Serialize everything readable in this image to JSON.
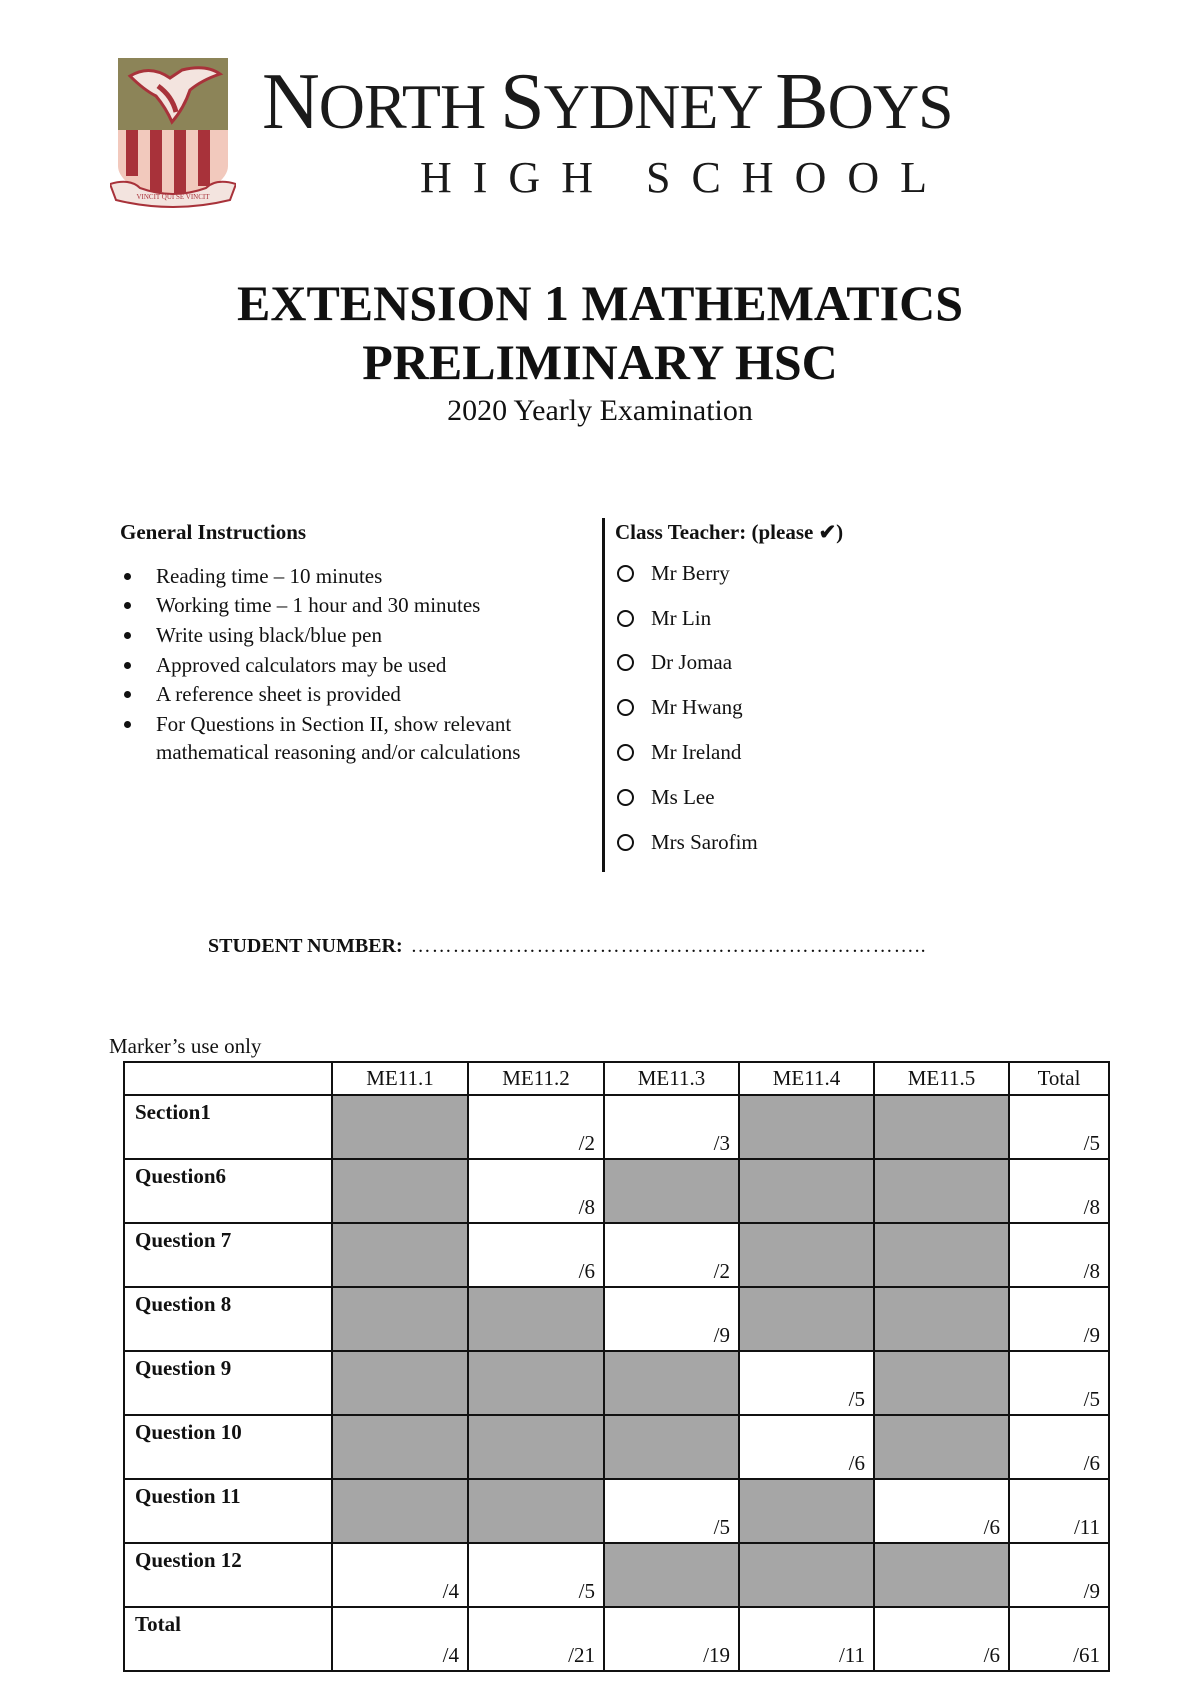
{
  "header": {
    "school_name_parts": [
      {
        "cap": "N",
        "rest": "ORTH "
      },
      {
        "cap": "S",
        "rest": "YDNEY "
      },
      {
        "cap": "B",
        "rest": "OYS"
      }
    ],
    "school_subtitle": "HIGH SCHOOL",
    "crest_motto": "VINCIT QUI SE VINCIT",
    "crest_colors": {
      "olive": "#8c8458",
      "red": "#a8323a",
      "pink": "#f2c9bd"
    }
  },
  "title": {
    "line1": "EXTENSION 1 MATHEMATICS",
    "line2": "PRELIMINARY HSC",
    "subtitle": "2020 Yearly Examination"
  },
  "instructions": {
    "heading": "General Instructions",
    "items": [
      "Reading time –  10 minutes",
      "Working time –  1 hour and 30 minutes",
      "Write using black/blue pen",
      "Approved calculators may be used",
      "A reference sheet is provided",
      "For Questions in Section II, show relevant",
      "mathematical reasoning and/or calculations"
    ]
  },
  "class_teacher": {
    "heading": "Class Teacher: (please ✔)",
    "teachers": [
      "Mr Berry",
      "Mr Lin",
      "Dr Jomaa",
      "Mr Hwang",
      "Mr Ireland",
      "Ms Lee",
      "Mrs Sarofim"
    ]
  },
  "student_number": {
    "label": "STUDENT NUMBER:",
    "dots": "……………………………………………………………….."
  },
  "marker": {
    "caption": "Marker’s use only",
    "grey_color": "#a6a6a6",
    "headers": [
      "",
      "ME11.1",
      "ME11.2",
      "ME11.3",
      "ME11.4",
      "ME11.5",
      "Total"
    ],
    "rows": [
      {
        "label": "Section1",
        "cells": [
          null,
          "/2",
          "/3",
          null,
          null,
          "/5"
        ]
      },
      {
        "label": "Question6",
        "cells": [
          null,
          "/8",
          null,
          null,
          null,
          "/8"
        ]
      },
      {
        "label": "Question 7",
        "cells": [
          null,
          "/6",
          "/2",
          null,
          null,
          "/8"
        ]
      },
      {
        "label": "Question 8",
        "cells": [
          null,
          null,
          "/9",
          null,
          null,
          "/9"
        ]
      },
      {
        "label": "Question 9",
        "cells": [
          null,
          null,
          null,
          "/5",
          null,
          "/5"
        ]
      },
      {
        "label": "Question 10",
        "cells": [
          null,
          null,
          null,
          "/6",
          null,
          "/6"
        ]
      },
      {
        "label": "Question 11",
        "cells": [
          null,
          null,
          "/5",
          null,
          "/6",
          "/11"
        ]
      },
      {
        "label": "Question 12",
        "cells": [
          "/4",
          "/5",
          null,
          null,
          null,
          "/9"
        ]
      },
      {
        "label": "Total",
        "cells": [
          "/4",
          "/21",
          "/19",
          "/11",
          "/6",
          "/61"
        ]
      }
    ]
  }
}
